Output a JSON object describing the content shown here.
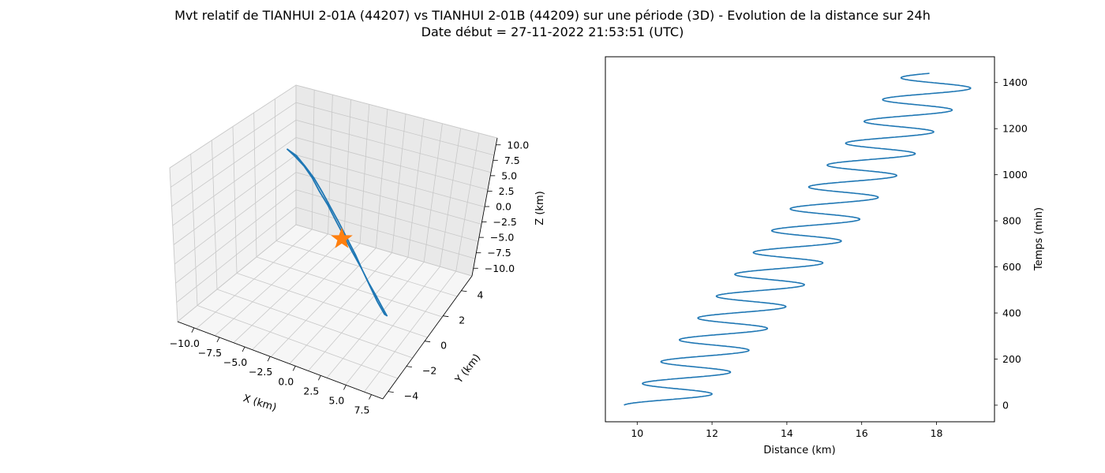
{
  "header": {
    "title_line1": "Mvt relatif de TIANHUI 2-01A (44207) vs TIANHUI 2-01B (44209) sur une période (3D) - Evolution de la distance sur 24h",
    "title_line2": "Date début = 27-11-2022 21:53:51 (UTC)"
  },
  "colors": {
    "series": "#1f77b4",
    "marker": "#ff7f0e"
  },
  "chart_data": [
    {
      "type": "line3d",
      "xlabel": "X (km)",
      "ylabel": "Y (km)",
      "zlabel": "Z (km)",
      "x_ticks": [
        "−10.0",
        "−7.5",
        "−5.0",
        "−2.5",
        "0.0",
        "2.5",
        "5.0",
        "7.5"
      ],
      "y_ticks": [
        "4",
        "2",
        "0",
        "−2",
        "−4"
      ],
      "z_ticks": [
        "10.0",
        "7.5",
        "5.0",
        "2.5",
        "0.0",
        "−2.5",
        "−5.0",
        "−7.5",
        "−10.0"
      ],
      "xlim": [
        -11,
        9
      ],
      "ylim": [
        -5,
        5
      ],
      "zlim": [
        -10.5,
        10.5
      ],
      "grid": true,
      "series": [
        {
          "description": "relative orbit ellipse (approx.)",
          "points": [
            [
              -5.8,
              -4.0,
              10.6
            ],
            [
              -5.2,
              -3.3,
              9.6
            ],
            [
              -4.6,
              -2.5,
              8.3
            ],
            [
              -4.0,
              -1.8,
              6.8
            ],
            [
              -3.4,
              -1.2,
              5.1
            ],
            [
              -2.8,
              -0.5,
              3.4
            ],
            [
              -2.2,
              0.2,
              1.4
            ],
            [
              -1.5,
              0.9,
              -0.6
            ],
            [
              -0.8,
              1.6,
              -2.6
            ],
            [
              -0.1,
              2.3,
              -4.5
            ],
            [
              0.5,
              2.9,
              -6.3
            ],
            [
              1.1,
              3.5,
              -7.9
            ],
            [
              1.6,
              4.0,
              -9.3
            ],
            [
              2.0,
              4.4,
              -10.4
            ],
            [
              1.8,
              4.2,
              -10.2
            ],
            [
              1.2,
              3.6,
              -8.6
            ],
            [
              0.6,
              3.0,
              -6.7
            ],
            [
              0.0,
              2.4,
              -4.8
            ],
            [
              -0.6,
              1.8,
              -2.8
            ],
            [
              -1.2,
              1.1,
              -0.8
            ],
            [
              -1.8,
              0.4,
              1.2
            ],
            [
              -2.4,
              -0.3,
              3.1
            ],
            [
              -3.0,
              -1.0,
              5.0
            ],
            [
              -3.7,
              -1.7,
              6.8
            ],
            [
              -4.4,
              -2.5,
              8.4
            ],
            [
              -5.1,
              -3.2,
              9.7
            ],
            [
              -5.8,
              -4.0,
              10.6
            ]
          ]
        }
      ],
      "marker": {
        "shape": "star",
        "point": [
          0,
          0,
          0
        ]
      }
    },
    {
      "type": "line",
      "xlabel": "Distance (km)",
      "ylabel": "Temps (min)",
      "xlim": [
        9.15,
        19.55
      ],
      "ylim": [
        -72,
        1512
      ],
      "x_ticks": [
        10,
        12,
        14,
        16,
        18
      ],
      "y_ticks": [
        0,
        200,
        400,
        600,
        800,
        1000,
        1200,
        1400
      ],
      "grid": false,
      "curve": {
        "description": "distance oscillating around a linearly increasing trend",
        "time_min": [
          0,
          1440
        ],
        "trend_start_km": 10.7,
        "trend_end_km": 18.2,
        "amplitude_km": 1.05,
        "period_min": 94.8,
        "phase_offset_min": 0
      }
    }
  ]
}
